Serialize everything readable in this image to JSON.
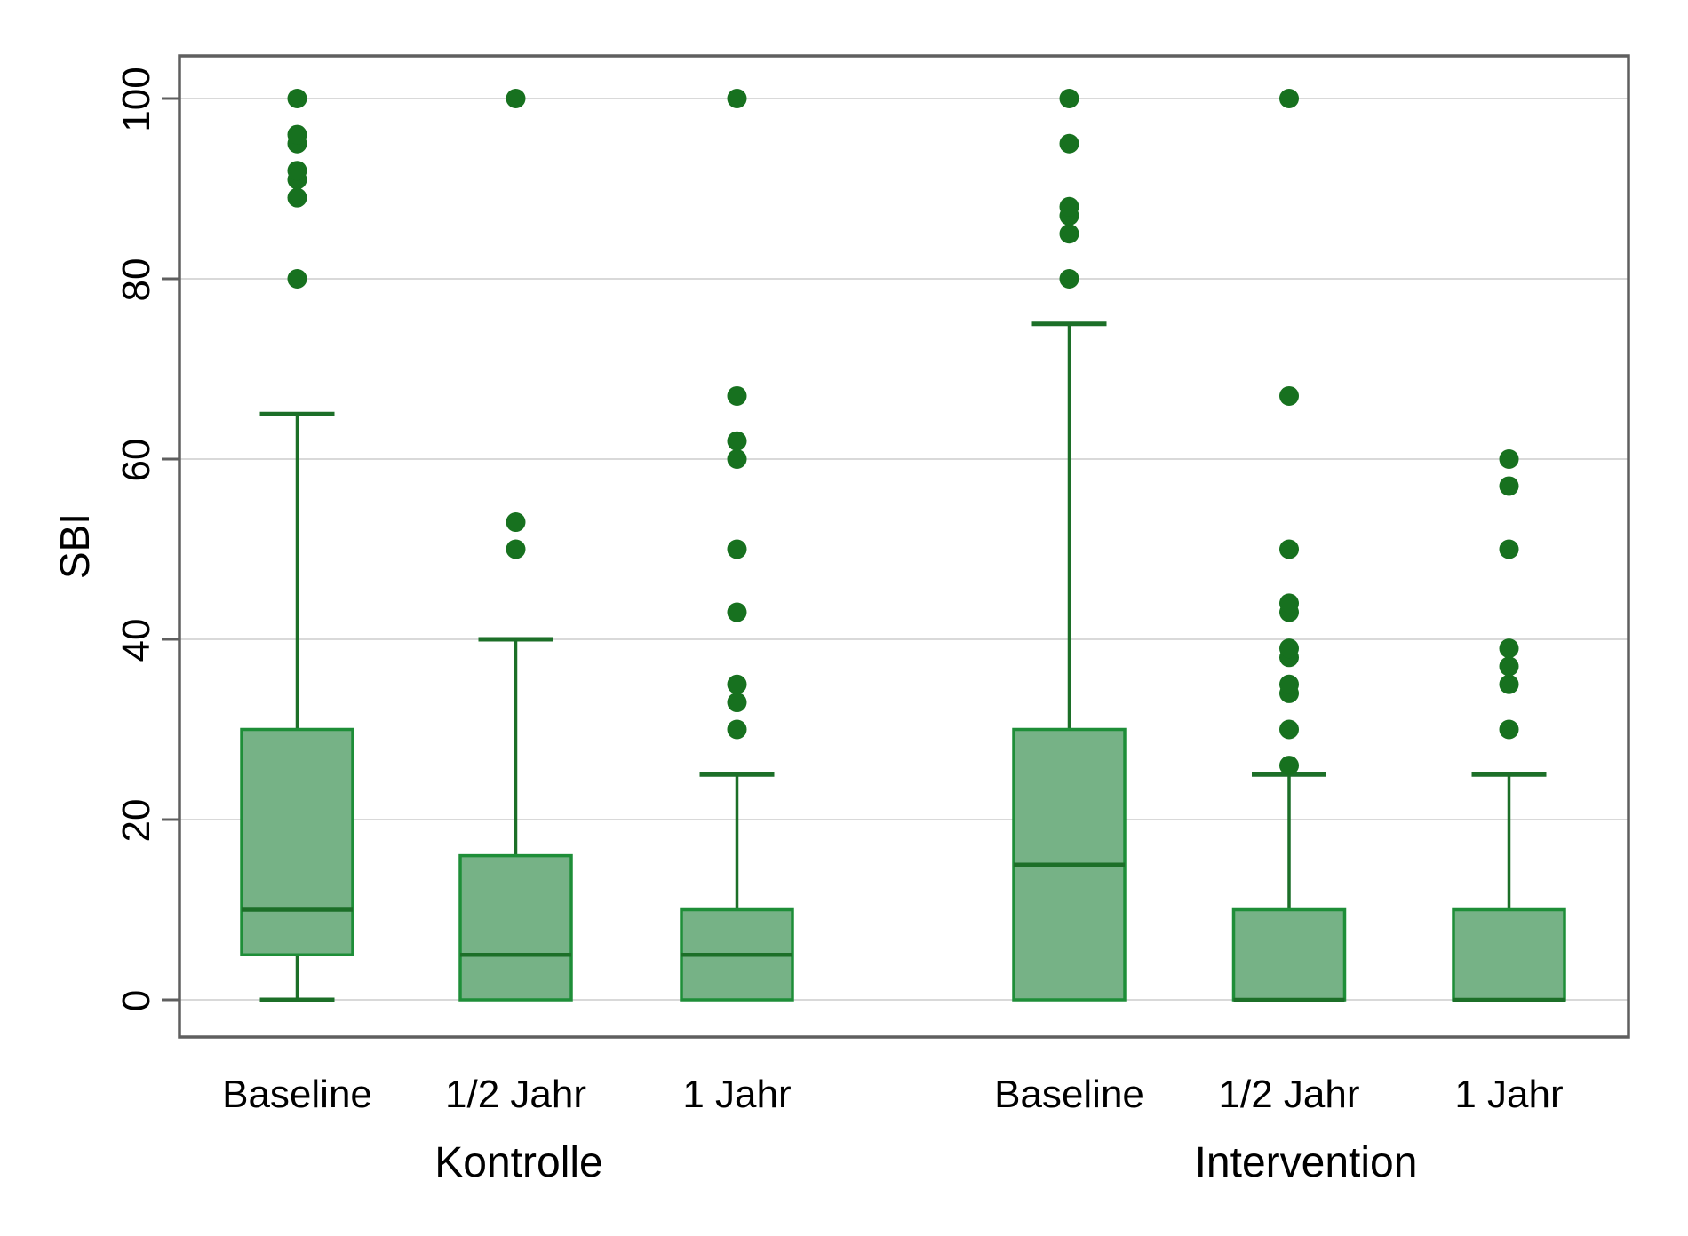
{
  "chart_data": {
    "type": "boxplot",
    "title": "",
    "ylabel": "SBI",
    "xlabel": "",
    "ylim": [
      0,
      100
    ],
    "yticks": [
      0,
      20,
      40,
      60,
      80,
      100
    ],
    "grid": "horizontal",
    "legend": "none",
    "groups": [
      {
        "label": "Kontrolle",
        "boxes": [
          {
            "category": "Baseline",
            "whisker_low": 0,
            "q1": 5,
            "median": 10,
            "q3": 30,
            "whisker_high": 65,
            "outliers": [
              80,
              89,
              91,
              92,
              95,
              96,
              100
            ]
          },
          {
            "category": "1/2 Jahr",
            "whisker_low": null,
            "q1": 0,
            "median": 5,
            "q3": 16,
            "whisker_high": 40,
            "outliers": [
              50,
              53,
              100
            ]
          },
          {
            "category": "1 Jahr",
            "whisker_low": null,
            "q1": 0,
            "median": 5,
            "q3": 10,
            "whisker_high": 25,
            "outliers": [
              30,
              33,
              35,
              43,
              50,
              60,
              62,
              67,
              100
            ]
          }
        ]
      },
      {
        "label": "Intervention",
        "boxes": [
          {
            "category": "Baseline",
            "whisker_low": null,
            "q1": 0,
            "median": 15,
            "q3": 30,
            "whisker_high": 75,
            "outliers": [
              80,
              85,
              87,
              88,
              95,
              100
            ]
          },
          {
            "category": "1/2 Jahr",
            "whisker_low": null,
            "q1": 0,
            "median": 0,
            "q3": 10,
            "whisker_high": 25,
            "outliers": [
              26,
              30,
              34,
              35,
              38,
              39,
              43,
              44,
              50,
              67,
              100
            ]
          },
          {
            "category": "1 Jahr",
            "whisker_low": null,
            "q1": 0,
            "median": 0,
            "q3": 10,
            "whisker_high": 25,
            "outliers": [
              30,
              35,
              37,
              39,
              50,
              57,
              60
            ]
          }
        ]
      }
    ],
    "colors": {
      "box_fill": "#76b286",
      "box_border": "#1e8e38",
      "whisker": "#1c6f28",
      "outlier": "#17711f",
      "grid": "#d9d9d9",
      "axis": "#5f5f5f",
      "text": "#000000"
    }
  }
}
